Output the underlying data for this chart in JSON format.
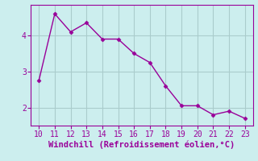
{
  "x": [
    10,
    11,
    12,
    13,
    14,
    15,
    16,
    17,
    18,
    19,
    20,
    21,
    22,
    23
  ],
  "y": [
    2.75,
    4.6,
    4.1,
    4.35,
    3.9,
    3.9,
    3.5,
    3.25,
    2.6,
    2.05,
    2.05,
    1.8,
    1.9,
    1.7
  ],
  "line_color": "#990099",
  "marker": "D",
  "marker_size": 2.5,
  "background_color": "#cceeee",
  "grid_color": "#aacccc",
  "xlabel": "Windchill (Refroidissement éolien,°C)",
  "xlabel_color": "#990099",
  "tick_color": "#990099",
  "spine_color": "#990099",
  "xlim": [
    9.5,
    23.5
  ],
  "ylim": [
    1.5,
    4.85
  ],
  "yticks": [
    2,
    3,
    4
  ],
  "xticks": [
    10,
    11,
    12,
    13,
    14,
    15,
    16,
    17,
    18,
    19,
    20,
    21,
    22,
    23
  ],
  "tick_fontsize": 7,
  "xlabel_fontsize": 7.5
}
